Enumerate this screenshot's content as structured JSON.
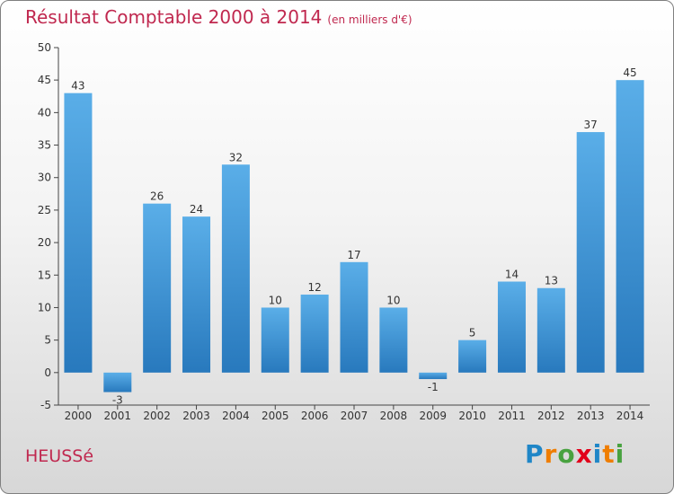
{
  "chart_data": {
    "type": "bar",
    "title": "Résultat Comptable 2000 à 2014",
    "subtitle": "(en milliers d'€)",
    "categories": [
      "2000",
      "2001",
      "2002",
      "2003",
      "2004",
      "2005",
      "2006",
      "2007",
      "2008",
      "2009",
      "2010",
      "2011",
      "2012",
      "2013",
      "2014"
    ],
    "values": [
      43,
      -3,
      26,
      24,
      32,
      10,
      12,
      17,
      10,
      -1,
      5,
      14,
      13,
      37,
      45
    ],
    "ylim": [
      -5,
      50
    ],
    "yticks": [
      -5,
      0,
      5,
      10,
      15,
      20,
      25,
      30,
      35,
      40,
      45,
      50
    ],
    "grid": false,
    "xlabel": "",
    "ylabel": ""
  },
  "footer": {
    "commune": "HEUSSé",
    "logo": [
      "P",
      "r",
      "o",
      "x",
      "i",
      "t",
      "i"
    ]
  },
  "colors": {
    "title": "#c0284f",
    "bar_light": "#5aaee8",
    "bar_dark": "#2879bd",
    "logo": [
      "#1f86c7",
      "#ef7d00",
      "#48a23f",
      "#e2001a",
      "#1f86c7",
      "#ef7d00",
      "#48a23f"
    ]
  }
}
